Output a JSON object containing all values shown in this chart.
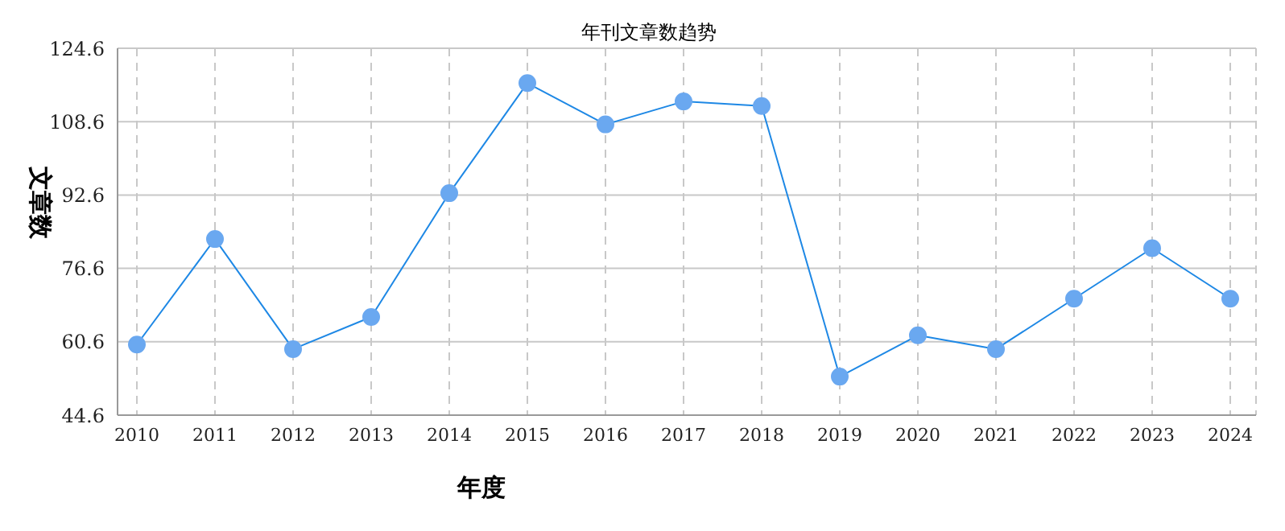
{
  "chart_data": {
    "type": "line",
    "title": "年刊文章数趋势",
    "xlabel": "年度",
    "ylabel": "文章数",
    "categories": [
      "2010",
      "2011",
      "2012",
      "2013",
      "2014",
      "2015",
      "2016",
      "2017",
      "2018",
      "2019",
      "2020",
      "2021",
      "2022",
      "2023",
      "2024"
    ],
    "series": [
      {
        "color": "#1e88e5",
        "values": [
          60,
          83,
          59,
          66,
          93,
          117,
          108,
          113,
          112,
          53,
          62,
          59,
          70,
          81,
          70
        ]
      }
    ],
    "ylim": [
      44.6,
      124.6
    ],
    "yticks": [
      44.6,
      60.6,
      76.6,
      92.6,
      108.6,
      124.6
    ],
    "grid": true,
    "marker": "circle",
    "line_style": "solid",
    "legend": false
  }
}
